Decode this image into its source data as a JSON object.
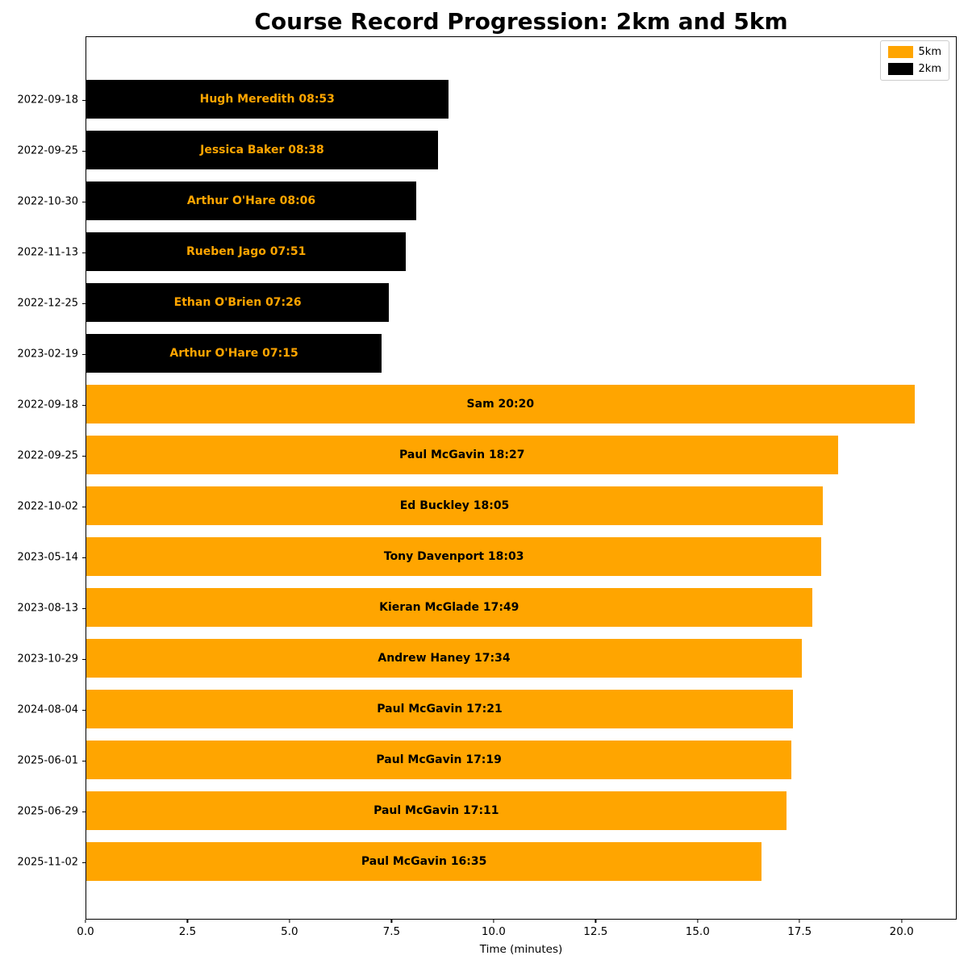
{
  "figure": {
    "background": "#ffffff"
  },
  "chart_data": {
    "type": "bar",
    "orientation": "horizontal",
    "title": "Course Record Progression: 2km and 5km",
    "xlabel": "Time (minutes)",
    "ylabel": "",
    "xlim": [
      0,
      21.35
    ],
    "grid": false,
    "legend_position": "upper right",
    "legend": [
      {
        "label": "5km",
        "color": "#FFA500"
      },
      {
        "label": "2km",
        "color": "#000000"
      }
    ],
    "series_colors": {
      "5km": {
        "bar": "#FFA500",
        "text": "#000000"
      },
      "2km": {
        "bar": "#000000",
        "text": "#FFA500"
      }
    },
    "xticks": [
      {
        "value": 0,
        "label": "0.0"
      },
      {
        "value": 2.5,
        "label": "2.5"
      },
      {
        "value": 5,
        "label": "5.0"
      },
      {
        "value": 7.5,
        "label": "7.5"
      },
      {
        "value": 10,
        "label": "10.0"
      },
      {
        "value": 12.5,
        "label": "12.5"
      },
      {
        "value": 15,
        "label": "15.0"
      },
      {
        "value": 17.5,
        "label": "17.5"
      },
      {
        "value": 20,
        "label": "20.0"
      }
    ],
    "bars": [
      {
        "date": "2022-09-18",
        "series": "2km",
        "runner": "Hugh Meredith",
        "time": "08:53",
        "minutes": 8.8833,
        "label": "Hugh Meredith 08:53"
      },
      {
        "date": "2022-09-25",
        "series": "2km",
        "runner": "Jessica Baker",
        "time": "08:38",
        "minutes": 8.6333,
        "label": "Jessica Baker 08:38"
      },
      {
        "date": "2022-10-30",
        "series": "2km",
        "runner": "Arthur O'Hare",
        "time": "08:06",
        "minutes": 8.1,
        "label": "Arthur O'Hare 08:06"
      },
      {
        "date": "2022-11-13",
        "series": "2km",
        "runner": "Rueben Jago",
        "time": "07:51",
        "minutes": 7.85,
        "label": "Rueben Jago 07:51"
      },
      {
        "date": "2022-12-25",
        "series": "2km",
        "runner": "Ethan O'Brien",
        "time": "07:26",
        "minutes": 7.4333,
        "label": "Ethan O'Brien 07:26"
      },
      {
        "date": "2023-02-19",
        "series": "2km",
        "runner": "Arthur O'Hare",
        "time": "07:15",
        "minutes": 7.25,
        "label": "Arthur O'Hare 07:15"
      },
      {
        "date": "2022-09-18",
        "series": "5km",
        "runner": "Sam",
        "time": "20:20",
        "minutes": 20.3333,
        "label": "Sam 20:20"
      },
      {
        "date": "2022-09-25",
        "series": "5km",
        "runner": "Paul McGavin",
        "time": "18:27",
        "minutes": 18.45,
        "label": "Paul McGavin 18:27"
      },
      {
        "date": "2022-10-02",
        "series": "5km",
        "runner": "Ed Buckley",
        "time": "18:05",
        "minutes": 18.0833,
        "label": "Ed Buckley 18:05"
      },
      {
        "date": "2023-05-14",
        "series": "5km",
        "runner": "Tony Davenport",
        "time": "18:03",
        "minutes": 18.05,
        "label": "Tony Davenport 18:03"
      },
      {
        "date": "2023-08-13",
        "series": "5km",
        "runner": "Kieran McGlade",
        "time": "17:49",
        "minutes": 17.8167,
        "label": "Kieran McGlade 17:49"
      },
      {
        "date": "2023-10-29",
        "series": "5km",
        "runner": "Andrew Haney",
        "time": "17:34",
        "minutes": 17.5667,
        "label": "Andrew Haney 17:34"
      },
      {
        "date": "2024-08-04",
        "series": "5km",
        "runner": "Paul McGavin",
        "time": "17:21",
        "minutes": 17.35,
        "label": "Paul McGavin 17:21"
      },
      {
        "date": "2025-06-01",
        "series": "5km",
        "runner": "Paul McGavin",
        "time": "17:19",
        "minutes": 17.3167,
        "label": "Paul McGavin 17:19"
      },
      {
        "date": "2025-06-29",
        "series": "5km",
        "runner": "Paul McGavin",
        "time": "17:11",
        "minutes": 17.1833,
        "label": "Paul McGavin 17:11"
      },
      {
        "date": "2025-11-02",
        "series": "5km",
        "runner": "Paul McGavin",
        "time": "16:35",
        "minutes": 16.5833,
        "label": "Paul McGavin 16:35"
      }
    ]
  }
}
